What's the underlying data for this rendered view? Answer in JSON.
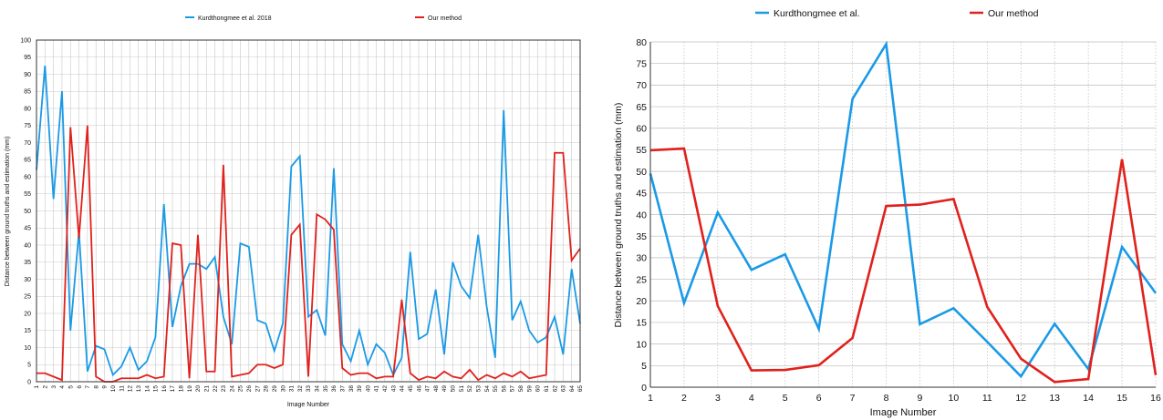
{
  "chart_data": [
    {
      "type": "line",
      "title": "",
      "xlabel": "Image Number",
      "ylabel": "Distance between ground truths and estimation (mm)",
      "ylim": [
        0,
        100
      ],
      "yticks": [
        0,
        5,
        10,
        15,
        20,
        25,
        30,
        35,
        40,
        45,
        50,
        55,
        60,
        65,
        70,
        75,
        80,
        85,
        90,
        95,
        100
      ],
      "grid": true,
      "legend_position": "top",
      "x": [
        1,
        2,
        3,
        4,
        5,
        6,
        7,
        8,
        9,
        10,
        11,
        12,
        13,
        14,
        15,
        16,
        17,
        18,
        19,
        20,
        21,
        22,
        23,
        24,
        25,
        26,
        27,
        28,
        29,
        30,
        31,
        32,
        33,
        34,
        35,
        36,
        37,
        38,
        39,
        40,
        41,
        42,
        43,
        44,
        45,
        46,
        47,
        48,
        49,
        50,
        51,
        52,
        53,
        54,
        55,
        56,
        57,
        58,
        59,
        60,
        61,
        62,
        63,
        64,
        65
      ],
      "series": [
        {
          "name": "Kurdthongmee et al. 2018",
          "color": "#1a9ae6",
          "values": [
            62,
            92.5,
            53.5,
            85,
            15,
            44,
            3,
            10.5,
            9.5,
            2,
            4.5,
            10,
            3.5,
            6,
            13,
            52,
            16,
            28,
            34.5,
            34.5,
            33,
            36.5,
            19,
            11,
            40.5,
            39.5,
            18,
            17,
            9,
            17,
            63,
            66,
            19,
            21,
            13.5,
            62.5,
            11,
            6,
            15,
            5,
            11,
            8.5,
            2,
            7,
            38,
            12.5,
            14,
            27,
            8,
            35,
            28,
            24.5,
            43,
            22,
            7,
            79.5,
            18,
            23.5,
            15,
            11.5,
            13,
            19,
            8,
            33,
            17
          ]
        },
        {
          "name": "Our method",
          "color": "#e0211c",
          "values": [
            2.5,
            2.5,
            1.5,
            0.5,
            74.5,
            42,
            75,
            1.5,
            0,
            0,
            1,
            1,
            1,
            2,
            1,
            1.5,
            40.5,
            40,
            1,
            43,
            3,
            3,
            63.5,
            1.5,
            2,
            2.5,
            5,
            5,
            4,
            5,
            43,
            46,
            1.5,
            49,
            47.5,
            44.5,
            4,
            2,
            2.5,
            2.5,
            1,
            1.5,
            1.5,
            24,
            2.5,
            0.5,
            1.5,
            1,
            3,
            1.5,
            1,
            3.5,
            0.5,
            2,
            1,
            2.5,
            1.5,
            3,
            1,
            1.5,
            2,
            67,
            67,
            35.5,
            39
          ]
        }
      ]
    },
    {
      "type": "line",
      "title": "",
      "xlabel": "Image Number",
      "ylabel": "Distance between ground truths and estimation (mm)",
      "ylim": [
        0,
        80
      ],
      "yticks": [
        0,
        5,
        10,
        15,
        20,
        25,
        30,
        35,
        40,
        45,
        50,
        55,
        60,
        65,
        70,
        75,
        80
      ],
      "grid": true,
      "legend_position": "top",
      "x": [
        1,
        2,
        3,
        4,
        5,
        6,
        7,
        8,
        9,
        10,
        11,
        12,
        13,
        14,
        15,
        16
      ],
      "series": [
        {
          "name": "Kurdthongmee et al.",
          "color": "#1a9ae6",
          "values": [
            49.5,
            19.5,
            40.5,
            27.2,
            30.8,
            13.5,
            66.8,
            79.5,
            14.6,
            18.3,
            10.5,
            2.5,
            14.7,
            4.2,
            32.5,
            21.8
          ]
        },
        {
          "name": "Our method",
          "color": "#e0211c",
          "values": [
            54.9,
            55.3,
            18.8,
            3.9,
            4,
            5.1,
            11.4,
            42,
            42.3,
            43.6,
            18.6,
            6.6,
            1.2,
            1.9,
            52.8,
            2.8
          ]
        }
      ]
    }
  ]
}
